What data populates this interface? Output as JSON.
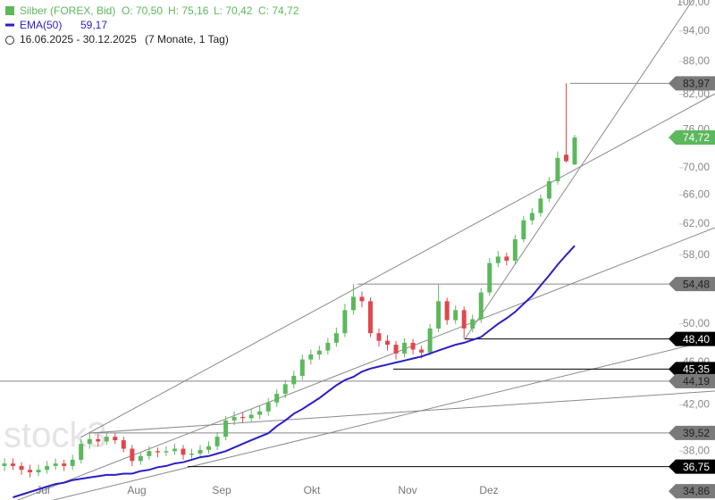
{
  "chart_data": {
    "type": "candlestick",
    "header": {
      "instrument": "Silber (FOREX, Bid)",
      "ohlc_text": [
        "O: 70,50",
        "H: 75,16",
        "L: 70,42",
        "C: 74,72"
      ],
      "indicator": "EMA(50)",
      "indicator_value": "59,17",
      "range": "16.06.2025 - 30.12.2025",
      "period": "(7 Monate, 1 Tag)"
    },
    "watermark": "stock3",
    "months": [
      "Jul",
      "Aug",
      "Sep",
      "Okt",
      "Nov",
      "Dez"
    ],
    "log_scale": true,
    "ylim": [
      34.2,
      100.5
    ],
    "yticks": [
      {
        "value": 100,
        "label": "100,00"
      },
      {
        "value": 94,
        "label": "94,00"
      },
      {
        "value": 88,
        "label": "88,00"
      },
      {
        "value": 82,
        "label": "82,00"
      },
      {
        "value": 76,
        "label": "76,00"
      },
      {
        "value": 70,
        "label": "70,00"
      },
      {
        "value": 66,
        "label": "66,00"
      },
      {
        "value": 62,
        "label": "62,00"
      },
      {
        "value": 58,
        "label": "58,00"
      },
      {
        "value": 50,
        "label": "50,00"
      },
      {
        "value": 46,
        "label": "46,00"
      },
      {
        "value": 42,
        "label": "42,00"
      },
      {
        "value": 38,
        "label": "38,00"
      }
    ],
    "up_color": "#5cb85c",
    "down_color": "#e0474c",
    "ohlc": [
      [
        36.8,
        37.4,
        36.4,
        37.0
      ],
      [
        37.0,
        37.4,
        36.5,
        36.8
      ],
      [
        36.8,
        37.1,
        36.1,
        36.5
      ],
      [
        36.5,
        36.9,
        35.9,
        36.3
      ],
      [
        36.3,
        36.9,
        36.0,
        36.5
      ],
      [
        36.5,
        37.2,
        36.2,
        36.8
      ],
      [
        36.8,
        37.4,
        36.5,
        37.0
      ],
      [
        37.0,
        37.3,
        36.4,
        36.8
      ],
      [
        36.8,
        37.7,
        36.5,
        37.3
      ],
      [
        37.3,
        39.0,
        37.0,
        38.6
      ],
      [
        38.6,
        39.5,
        38.2,
        39.0
      ],
      [
        39.0,
        39.4,
        38.4,
        38.8
      ],
      [
        38.8,
        39.6,
        38.5,
        39.2
      ],
      [
        39.2,
        39.5,
        38.6,
        38.9
      ],
      [
        38.9,
        39.2,
        37.9,
        38.2
      ],
      [
        38.2,
        38.5,
        36.8,
        37.2
      ],
      [
        37.2,
        37.9,
        36.9,
        37.6
      ],
      [
        37.6,
        38.4,
        37.3,
        38.0
      ],
      [
        38.0,
        38.3,
        37.5,
        37.9
      ],
      [
        37.9,
        38.4,
        37.6,
        38.0
      ],
      [
        38.0,
        38.6,
        37.7,
        38.2
      ],
      [
        38.2,
        38.5,
        37.3,
        37.7
      ],
      [
        37.7,
        38.2,
        37.4,
        37.8
      ],
      [
        37.8,
        38.5,
        37.5,
        38.1
      ],
      [
        38.1,
        38.8,
        37.8,
        38.4
      ],
      [
        38.4,
        39.6,
        38.1,
        39.2
      ],
      [
        39.2,
        41.0,
        38.9,
        40.6
      ],
      [
        40.6,
        41.4,
        40.2,
        40.9
      ],
      [
        40.9,
        41.3,
        40.4,
        40.8
      ],
      [
        40.8,
        41.6,
        40.5,
        41.1
      ],
      [
        41.1,
        41.9,
        40.7,
        41.4
      ],
      [
        41.4,
        42.6,
        41.0,
        42.2
      ],
      [
        42.2,
        43.4,
        41.8,
        43.0
      ],
      [
        43.0,
        44.3,
        42.6,
        43.9
      ],
      [
        43.9,
        45.2,
        43.5,
        44.7
      ],
      [
        44.7,
        46.8,
        44.3,
        46.3
      ],
      [
        46.3,
        47.3,
        45.8,
        46.8
      ],
      [
        46.8,
        47.7,
        46.3,
        47.2
      ],
      [
        47.2,
        48.5,
        46.8,
        48.0
      ],
      [
        48.0,
        49.6,
        47.6,
        49.0
      ],
      [
        49.0,
        52.2,
        48.6,
        51.5
      ],
      [
        51.5,
        54.48,
        51.0,
        53.0
      ],
      [
        53.0,
        53.6,
        51.8,
        52.5
      ],
      [
        52.5,
        52.9,
        48.6,
        49.0
      ],
      [
        49.0,
        49.5,
        47.6,
        48.2
      ],
      [
        48.2,
        48.8,
        47.2,
        47.8
      ],
      [
        47.8,
        48.2,
        46.3,
        46.9
      ],
      [
        46.9,
        48.5,
        46.5,
        48.0
      ],
      [
        48.0,
        48.4,
        46.8,
        47.3
      ],
      [
        47.3,
        47.7,
        46.4,
        47.0
      ],
      [
        47.0,
        50.0,
        46.7,
        49.5
      ],
      [
        49.5,
        54.48,
        49.1,
        52.5
      ],
      [
        52.5,
        52.9,
        49.9,
        50.4
      ],
      [
        50.4,
        52.0,
        50.0,
        51.5
      ],
      [
        51.5,
        51.9,
        48.4,
        49.5
      ],
      [
        49.5,
        51.0,
        49.1,
        50.5
      ],
      [
        50.5,
        54.0,
        50.1,
        53.5
      ],
      [
        53.5,
        57.6,
        53.1,
        57.0
      ],
      [
        57.0,
        58.5,
        56.5,
        57.8
      ],
      [
        57.8,
        58.3,
        56.7,
        57.3
      ],
      [
        57.3,
        60.6,
        56.9,
        60.0
      ],
      [
        60.0,
        63.1,
        59.6,
        62.5
      ],
      [
        62.5,
        64.2,
        61.9,
        63.5
      ],
      [
        63.5,
        66.1,
        63.0,
        65.5
      ],
      [
        65.5,
        68.6,
        65.0,
        68.0
      ],
      [
        68.0,
        72.5,
        67.5,
        71.5
      ],
      [
        72.0,
        83.97,
        70.8,
        71.0
      ],
      [
        70.5,
        75.16,
        70.42,
        74.72
      ]
    ],
    "series": [
      {
        "name": "EMA(50)",
        "color": "#2a1fc4",
        "values": [
          null,
          34.4,
          34.6,
          34.8,
          35.0,
          35.2,
          35.4,
          35.5,
          35.7,
          35.8,
          35.9,
          36.0,
          36.1,
          36.1,
          36.2,
          36.2,
          36.4,
          36.5,
          36.7,
          36.8,
          37.0,
          37.1,
          37.3,
          37.5,
          37.6,
          37.8,
          38.0,
          38.3,
          38.6,
          38.9,
          39.2,
          39.5,
          40.1,
          40.6,
          41.2,
          41.6,
          42.1,
          42.6,
          43.2,
          43.8,
          44.3,
          44.6,
          45.1,
          45.4,
          45.6,
          45.8,
          46.0,
          46.2,
          46.4,
          46.6,
          46.9,
          47.2,
          47.5,
          47.8,
          48.0,
          48.3,
          48.6,
          49.3,
          50.0,
          50.6,
          51.3,
          52.2,
          53.1,
          54.3,
          55.5,
          56.8,
          58.0,
          59.17
        ]
      }
    ],
    "price_labels": [
      {
        "value": 83.97,
        "label": "83,97",
        "style": "gray"
      },
      {
        "value": 74.72,
        "label": "74,72",
        "style": "green"
      },
      {
        "value": 54.48,
        "label": "54,48",
        "style": "gray"
      },
      {
        "value": 48.4,
        "label": "48,40",
        "style": "black"
      },
      {
        "value": 45.35,
        "label": "45,35",
        "style": "black"
      },
      {
        "value": 44.19,
        "label": "44,19",
        "style": "gray"
      },
      {
        "value": 39.52,
        "label": "39,52",
        "style": "gray"
      },
      {
        "value": 36.75,
        "label": "36,75",
        "style": "black"
      },
      {
        "value": 34.86,
        "label": "34,86",
        "style": "gray"
      }
    ]
  }
}
